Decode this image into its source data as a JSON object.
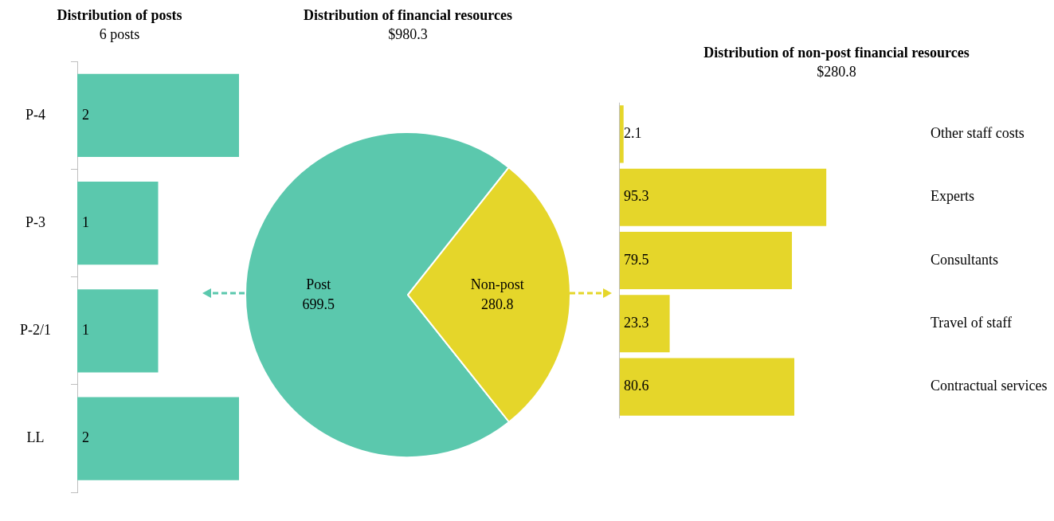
{
  "chart_data": [
    {
      "type": "bar",
      "orientation": "horizontal",
      "title": "Distribution of posts",
      "subtitle": "6 posts",
      "categories": [
        "P-4",
        "P-3",
        "P-2/1",
        "LL"
      ],
      "values": [
        2,
        1,
        1,
        2
      ],
      "color": "#5bc8ad",
      "data_labels": true
    },
    {
      "type": "pie",
      "title": "Distribution of financial resources",
      "subtitle": "$980.3",
      "categories": [
        "Post",
        "Non-post"
      ],
      "values": [
        699.5,
        280.8
      ],
      "colors": [
        "#5bc8ad",
        "#e5d62a"
      ],
      "data_labels": true
    },
    {
      "type": "bar",
      "orientation": "horizontal",
      "title": "Distribution of non-post financial resources",
      "subtitle": "$280.8",
      "categories": [
        "Other staff costs",
        "Experts",
        "Consultants",
        "Travel of staff",
        "Contractual services"
      ],
      "values": [
        2.1,
        95.3,
        79.5,
        23.3,
        80.6
      ],
      "color": "#e5d62a",
      "data_labels": true
    }
  ]
}
